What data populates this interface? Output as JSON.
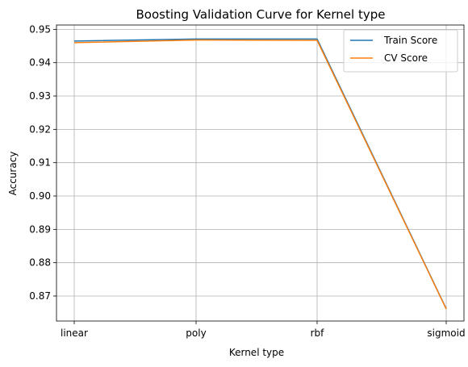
{
  "chart_data": {
    "type": "line",
    "title": "Boosting Validation Curve for Kernel type",
    "xlabel": "Kernel type",
    "ylabel": "Accuracy",
    "categories": [
      "linear",
      "poly",
      "rbf",
      "sigmoid"
    ],
    "series": [
      {
        "name": "Train Score",
        "color": "#1f77b4",
        "values": [
          0.9465,
          0.9471,
          0.9471,
          0.8662
        ]
      },
      {
        "name": "CV Score",
        "color": "#ff7f0e",
        "values": [
          0.946,
          0.9468,
          0.9467,
          0.8661
        ]
      }
    ],
    "ylim": [
      0.8625,
      0.9513
    ],
    "yticks": [
      "0.87",
      "0.88",
      "0.89",
      "0.90",
      "0.91",
      "0.92",
      "0.93",
      "0.94",
      "0.95"
    ],
    "grid": true,
    "legend": "top-right"
  }
}
